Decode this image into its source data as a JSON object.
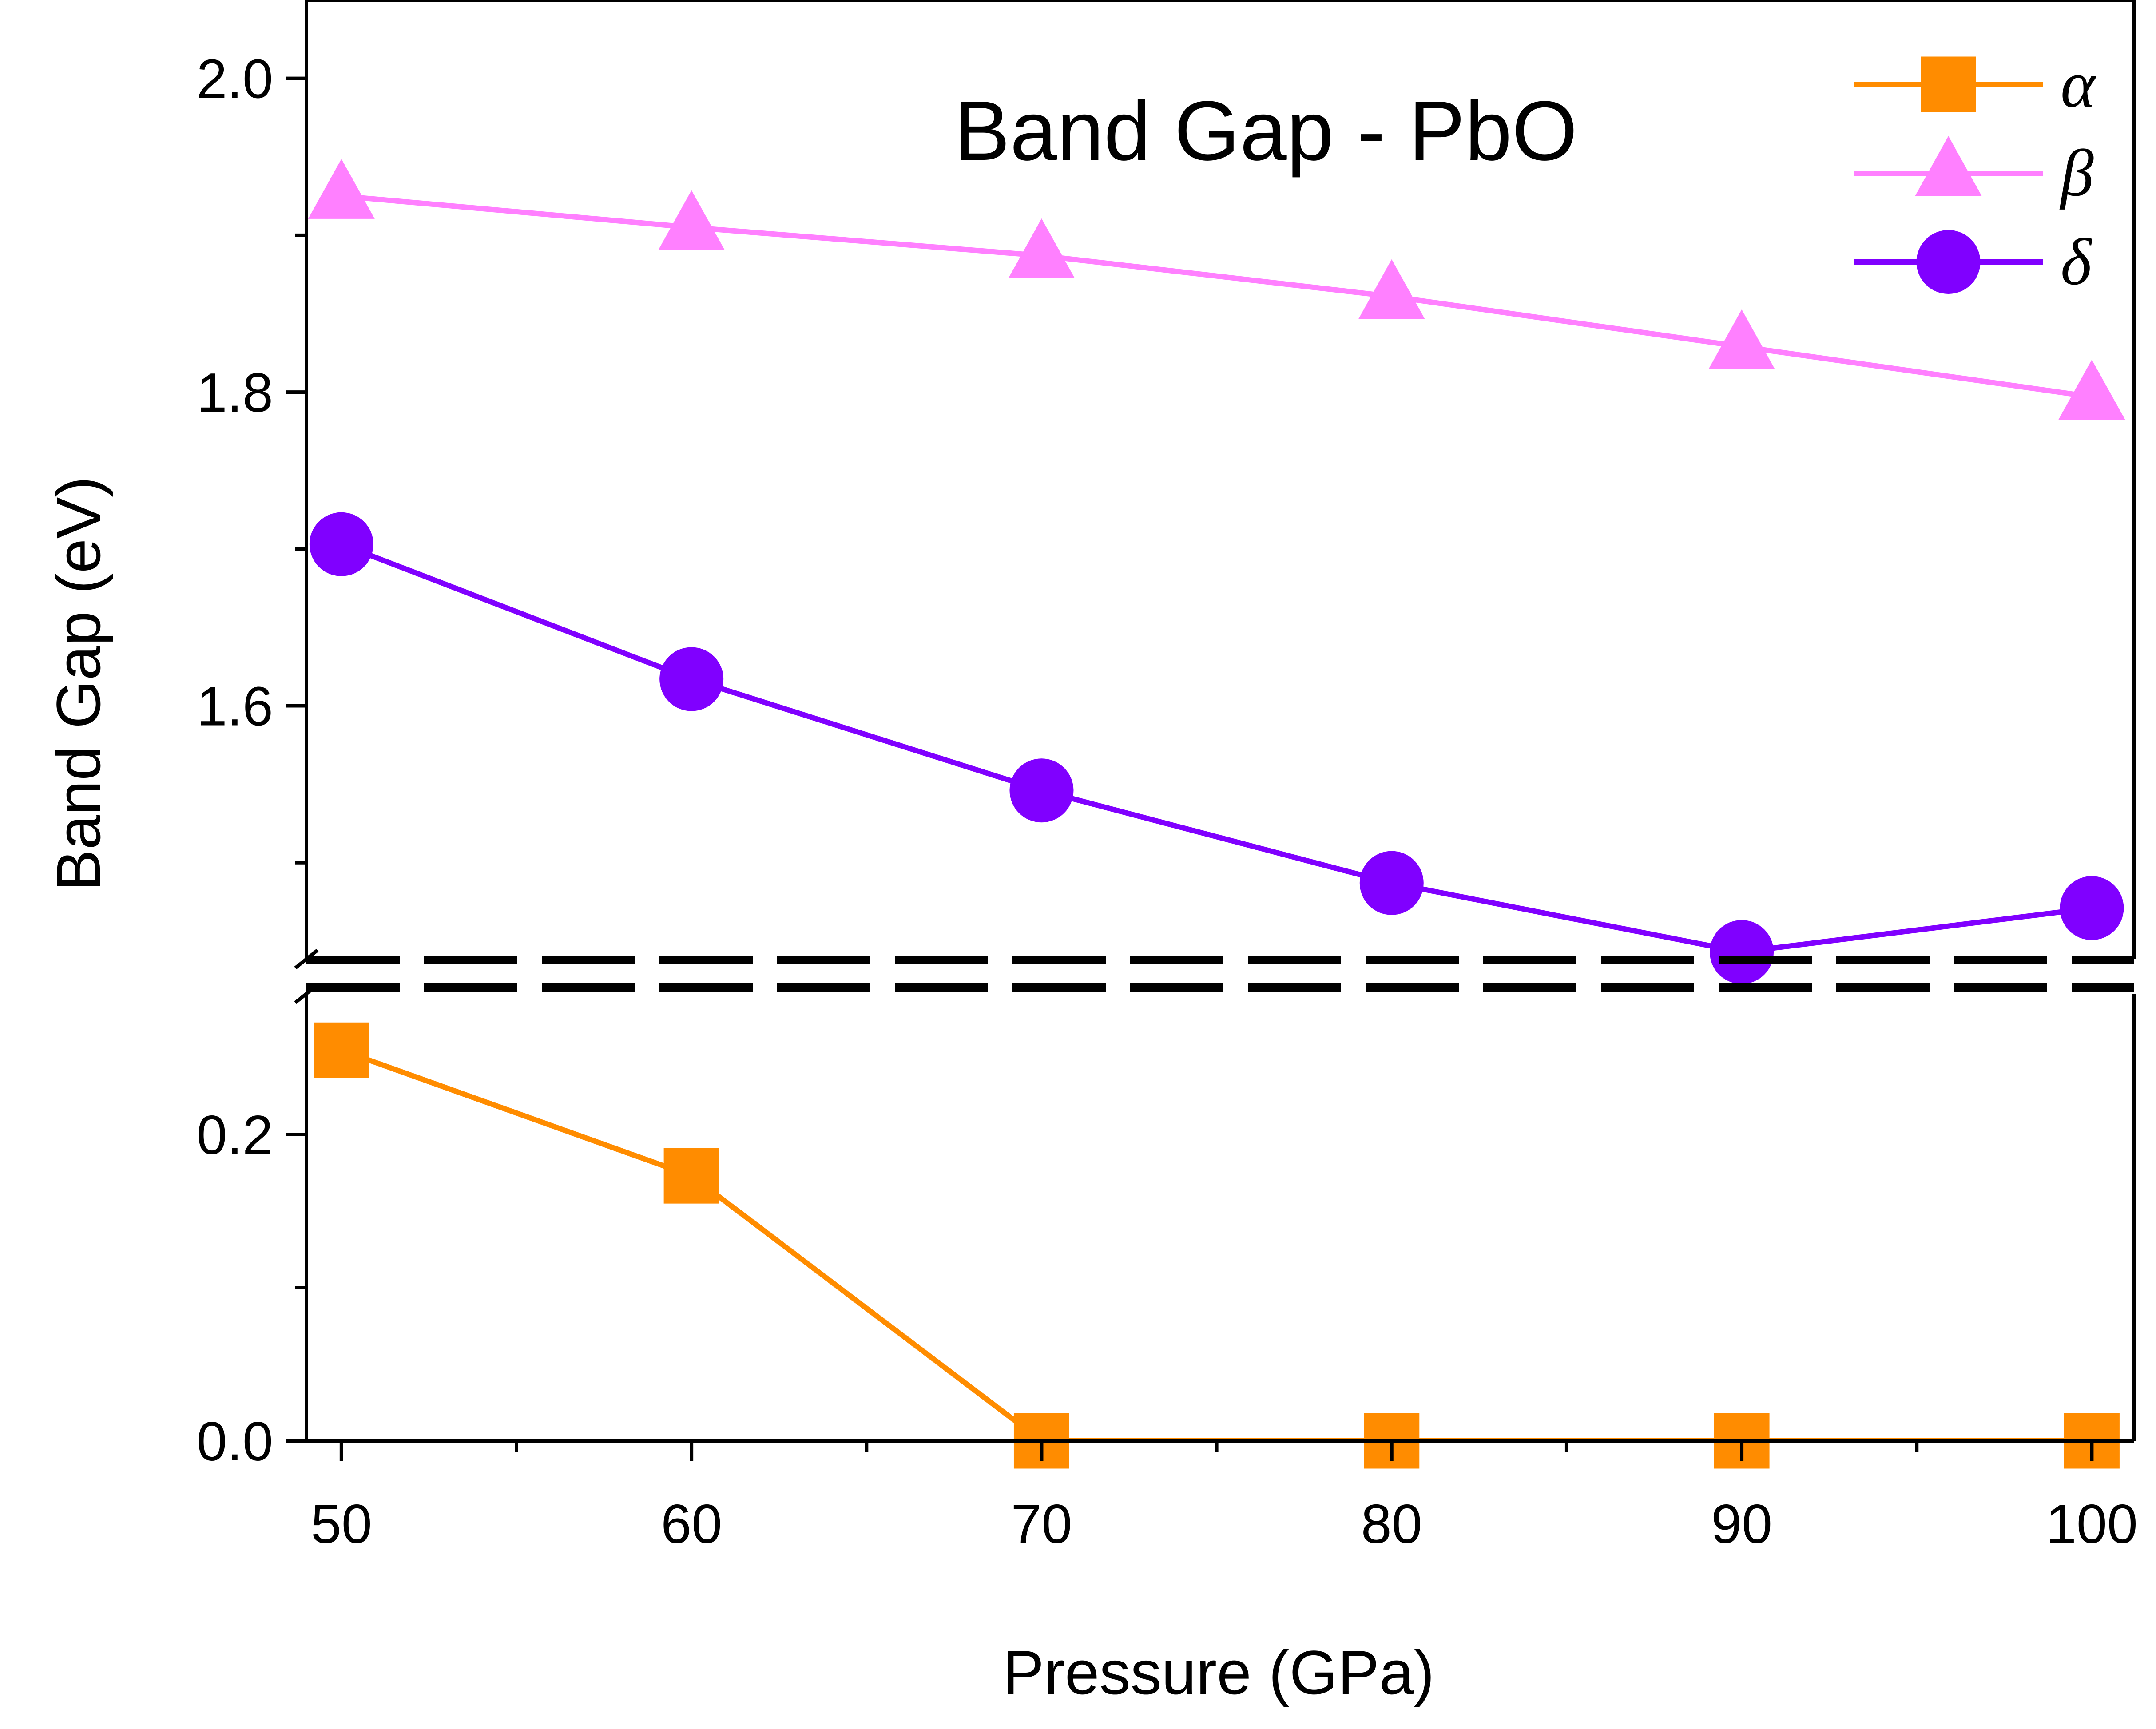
{
  "chart_data": {
    "type": "line",
    "title": "Band Gap - PbO",
    "xlabel": "Pressure (GPa)",
    "ylabel": "Band Gap (eV)",
    "x": [
      50,
      60,
      70,
      80,
      90,
      100
    ],
    "xlim": [
      49,
      101.2
    ],
    "xticks": [
      "50",
      "60",
      "70",
      "80",
      "90",
      "100"
    ],
    "y_axis_break": true,
    "y_segments": [
      {
        "range": [
          0,
          0.3
        ],
        "ticks": [
          "0.0",
          "0.2"
        ]
      },
      {
        "range": [
          1.43,
          2.05
        ],
        "ticks": [
          "1.6",
          "1.8",
          "2.0"
        ]
      }
    ],
    "legend_position": "top-right",
    "series": [
      {
        "name": "α",
        "color": "#ff8c00",
        "marker": "square",
        "values": [
          0.255,
          0.173,
          0.0,
          0.0,
          0.0,
          0.0
        ]
      },
      {
        "name": "β",
        "color": "#ff80ff",
        "marker": "triangle",
        "values": [
          1.925,
          1.905,
          1.887,
          1.861,
          1.829,
          1.797
        ]
      },
      {
        "name": "δ",
        "color": "#8000ff",
        "marker": "circle",
        "values": [
          1.703,
          1.617,
          1.546,
          1.487,
          1.443,
          1.471
        ]
      }
    ]
  }
}
